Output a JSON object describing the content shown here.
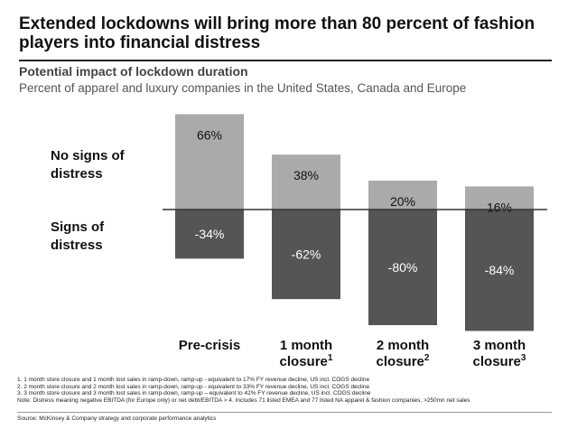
{
  "title": "Extended lockdowns will bring more than 80 percent of fashion players into financial distress",
  "subtitle": "Potential impact of lockdown duration",
  "description": "Percent of apparel and luxury companies in the United States, Canada and Europe",
  "side_labels": {
    "positive": "No signs of distress",
    "negative": "Signs of distress"
  },
  "chart_data": {
    "type": "bar",
    "stacked": "diverging",
    "categories": [
      {
        "label": "Pre-crisis",
        "sup": ""
      },
      {
        "label": "1 month closure",
        "sup": "1"
      },
      {
        "label": "2 month closure",
        "sup": "2"
      },
      {
        "label": "3 month closure",
        "sup": "3"
      }
    ],
    "series": [
      {
        "name": "No signs of distress",
        "values": [
          66,
          38,
          20,
          16
        ],
        "labels": [
          "66%",
          "38%",
          "20%",
          "16%"
        ],
        "color": "#aaaaaa"
      },
      {
        "name": "Signs of distress",
        "values": [
          -34,
          -62,
          -80,
          -84
        ],
        "labels": [
          "-34%",
          "-62%",
          "-80%",
          "-84%"
        ],
        "color": "#555555"
      }
    ],
    "ylim": [
      -84,
      66
    ],
    "grid": false,
    "legend": "left"
  },
  "footnotes": [
    "1. 1 month store closure and 1 month lost sales in ramp-down, ramp-up - equivalent to 17% FY revenue decline, US incl. COGS decline",
    "2. 2 month store closure and 2 month lost sales in ramp-down, ramp-up - equivalent to 33% FY revenue decline, US incl. COGS decline",
    "3. 3 month store closure and 3 month lost sales in ramp-down, ramp-up – equivalent to 42% FY revenue decline, US incl. COGS decline",
    "Note: Distress meaning negative EBITDA (for Europe only) or net debt/EBITDA > 4. Includes 71 listed EMEA and 77 listed NA apparel & fashion companies, >250mn net sales"
  ],
  "source": "Source: McKinsey & Company strategy and corporate performance analytics"
}
